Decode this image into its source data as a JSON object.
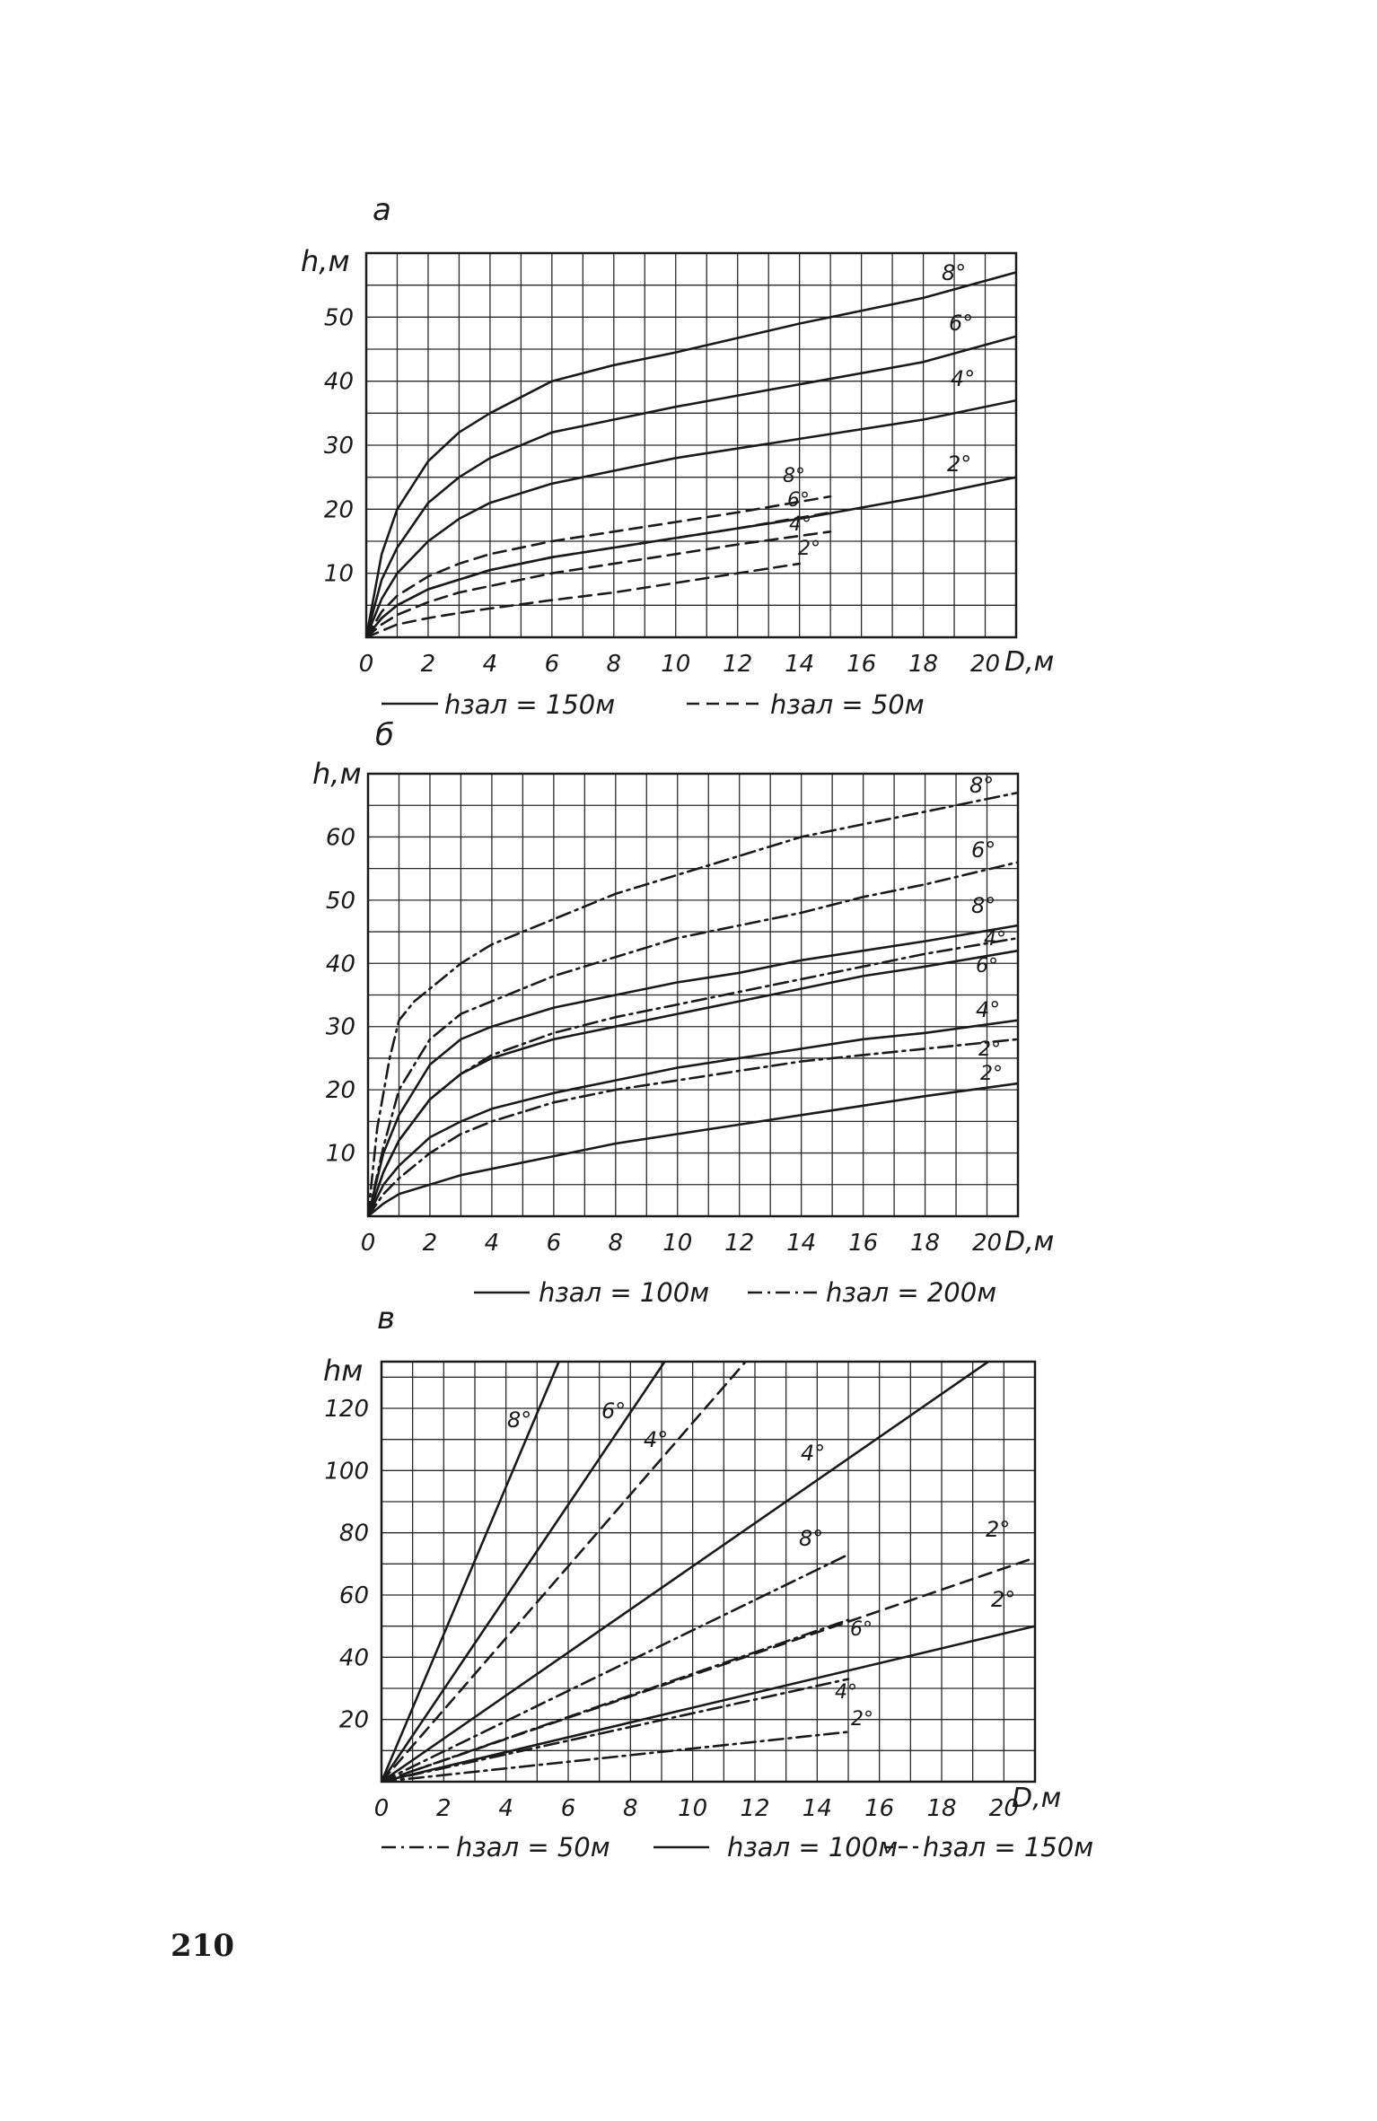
{
  "page": {
    "number": "210"
  },
  "chart_data": [
    {
      "type": "line",
      "panel_letter": "а",
      "ylabel": "h,м",
      "xlabel": "D,м",
      "xlim": [
        0,
        21
      ],
      "ylim": [
        0,
        60
      ],
      "xticks": [
        0,
        2,
        4,
        6,
        8,
        10,
        12,
        14,
        16,
        18,
        20
      ],
      "xtick_labels": [
        "0",
        "2",
        "4",
        "6",
        "8",
        "10",
        "12",
        "14",
        "16",
        "18",
        "20"
      ],
      "yticks": [
        10,
        20,
        30,
        40,
        50
      ],
      "ytick_labels": [
        "10",
        "20",
        "30",
        "40",
        "50"
      ],
      "grid": true,
      "legend": [
        {
          "style": "solid",
          "label": "hзал = 150м"
        },
        {
          "style": "dashed",
          "label": "hзал = 50м"
        }
      ],
      "series": [
        {
          "style": "solid",
          "group": "hзал = 150м",
          "label": "8°",
          "x": [
            0,
            0.5,
            1,
            2,
            3,
            4,
            6,
            8,
            10,
            14,
            18,
            21
          ],
          "y": [
            0,
            13,
            20,
            27.5,
            32,
            35,
            40,
            42.5,
            44.5,
            49,
            53,
            57
          ]
        },
        {
          "style": "solid",
          "group": "hзал = 150м",
          "label": "6°",
          "x": [
            0,
            0.5,
            1,
            2,
            3,
            4,
            6,
            8,
            10,
            14,
            18,
            21
          ],
          "y": [
            0,
            9,
            14,
            21,
            25,
            28,
            32,
            34,
            36,
            39.5,
            43,
            47
          ]
        },
        {
          "style": "solid",
          "group": "hзал = 150м",
          "label": "4°",
          "x": [
            0,
            0.5,
            1,
            2,
            3,
            4,
            6,
            8,
            10,
            14,
            18,
            21
          ],
          "y": [
            0,
            6,
            10,
            15,
            18.5,
            21,
            24,
            26,
            28,
            31,
            34,
            37
          ]
        },
        {
          "style": "solid",
          "group": "hзал = 150м",
          "label": "2°",
          "x": [
            0,
            0.5,
            1,
            2,
            3,
            4,
            6,
            8,
            10,
            14,
            18,
            21
          ],
          "y": [
            0,
            3,
            5,
            7.5,
            9,
            10.5,
            12.5,
            14,
            15.5,
            18.5,
            22,
            25
          ]
        },
        {
          "style": "dashed",
          "group": "hзал = 50м",
          "label": "8°",
          "x": [
            0,
            0.5,
            1,
            2,
            3,
            4,
            6,
            8,
            10,
            12,
            15
          ],
          "y": [
            0,
            4,
            6.5,
            9.5,
            11.5,
            13,
            15,
            16.5,
            18,
            19.5,
            22
          ]
        },
        {
          "style": "dashed",
          "group": "hзал = 50м",
          "label": "6°",
          "x": [
            0,
            0.5,
            1,
            2,
            3,
            4,
            6,
            8,
            10,
            12,
            15
          ],
          "y": [
            0,
            3,
            5,
            7.5,
            9,
            10.5,
            12.5,
            14,
            15.5,
            17,
            19.5
          ]
        },
        {
          "style": "dashed",
          "group": "hзал = 50м",
          "label": "4°",
          "x": [
            0,
            0.5,
            1,
            2,
            3,
            4,
            6,
            8,
            10,
            12,
            15
          ],
          "y": [
            0,
            2,
            3.5,
            5.5,
            7,
            8,
            10,
            11.5,
            13,
            14.5,
            16.5
          ]
        },
        {
          "style": "dashed",
          "group": "hзал = 50м",
          "label": "2°",
          "x": [
            0,
            0.5,
            1,
            2,
            3,
            4,
            6,
            8,
            10,
            12,
            14
          ],
          "y": [
            0,
            1,
            2,
            3,
            3.8,
            4.5,
            5.8,
            7,
            8.5,
            10,
            11.5
          ]
        }
      ]
    },
    {
      "type": "line",
      "panel_letter": "б",
      "ylabel": "h,м",
      "xlabel": "D,м",
      "xlim": [
        0,
        21
      ],
      "ylim": [
        0,
        70
      ],
      "xticks": [
        0,
        2,
        4,
        6,
        8,
        10,
        12,
        14,
        16,
        18,
        20
      ],
      "xtick_labels": [
        "0",
        "2",
        "4",
        "6",
        "8",
        "10",
        "12",
        "14",
        "16",
        "18",
        "20"
      ],
      "yticks": [
        10,
        20,
        30,
        40,
        50,
        60
      ],
      "ytick_labels": [
        "10",
        "20",
        "30",
        "40",
        "50",
        "60"
      ],
      "grid": true,
      "legend": [
        {
          "style": "solid",
          "label": "hзал = 100м"
        },
        {
          "style": "dashdot",
          "label": "hзал = 200м"
        }
      ],
      "series": [
        {
          "style": "dashdot",
          "group": "hзал = 200м",
          "label": "8°",
          "x": [
            0,
            0.3,
            0.7,
            1,
            1.5,
            2,
            3,
            4,
            6,
            8,
            10,
            12,
            14,
            16,
            18,
            21
          ],
          "y": [
            0,
            14,
            25,
            31,
            34,
            36,
            40,
            43,
            47,
            51,
            54,
            57,
            60,
            62,
            64,
            67
          ]
        },
        {
          "style": "dashdot",
          "group": "hзал = 200м",
          "label": "6°",
          "x": [
            0,
            0.5,
            1,
            2,
            3,
            4,
            6,
            8,
            10,
            12,
            14,
            16,
            18,
            21
          ],
          "y": [
            0,
            11,
            20,
            28,
            32,
            34,
            38,
            41,
            44,
            46,
            48,
            50.5,
            52.5,
            56
          ]
        },
        {
          "style": "dashdot",
          "group": "hзал = 200м",
          "label": "4°",
          "x": [
            0,
            0.5,
            1,
            2,
            3,
            4,
            6,
            8,
            10,
            12,
            14,
            16,
            18,
            21
          ],
          "y": [
            0,
            7,
            12,
            18.5,
            22.5,
            25.5,
            29,
            31.5,
            33.5,
            35.5,
            37.5,
            39.5,
            41.5,
            44
          ]
        },
        {
          "style": "dashdot",
          "group": "hзал = 200м",
          "label": "2°",
          "x": [
            0,
            0.5,
            1,
            2,
            3,
            4,
            6,
            8,
            10,
            12,
            14,
            16,
            18,
            21
          ],
          "y": [
            0,
            3.5,
            6,
            10,
            13,
            15,
            18,
            20,
            21.5,
            23,
            24.5,
            25.5,
            26.5,
            28
          ]
        },
        {
          "style": "solid",
          "group": "hзал = 100м",
          "label": "8°",
          "x": [
            0,
            0.5,
            1,
            2,
            3,
            4,
            6,
            8,
            10,
            12,
            14,
            16,
            18,
            21
          ],
          "y": [
            0,
            10,
            16,
            24,
            28,
            30,
            33,
            35,
            37,
            38.5,
            40.5,
            42,
            43.5,
            46
          ]
        },
        {
          "style": "solid",
          "group": "hзал = 100м",
          "label": "6°",
          "x": [
            0,
            0.5,
            1,
            2,
            3,
            4,
            6,
            8,
            10,
            12,
            14,
            16,
            18,
            21
          ],
          "y": [
            0,
            7,
            12,
            18.5,
            22.5,
            25,
            28,
            30,
            32,
            34,
            36,
            38,
            39.5,
            42
          ]
        },
        {
          "style": "solid",
          "group": "hзал = 100м",
          "label": "4°",
          "x": [
            0,
            0.5,
            1,
            2,
            3,
            4,
            6,
            8,
            10,
            12,
            14,
            16,
            18,
            21
          ],
          "y": [
            0,
            5,
            8,
            12.5,
            15,
            17,
            19.5,
            21.5,
            23.5,
            25,
            26.5,
            28,
            29,
            31
          ]
        },
        {
          "style": "solid",
          "group": "hзал = 100м",
          "label": "2°",
          "x": [
            0,
            0.5,
            1,
            2,
            3,
            4,
            6,
            8,
            10,
            12,
            14,
            16,
            18,
            21
          ],
          "y": [
            0,
            2,
            3.5,
            5,
            6.5,
            7.5,
            9.5,
            11.5,
            13,
            14.5,
            16,
            17.5,
            19,
            21
          ]
        }
      ]
    },
    {
      "type": "line",
      "panel_letter": "в",
      "ylabel": "hм",
      "xlabel": "D,м",
      "xlim": [
        0,
        21
      ],
      "ylim": [
        0,
        135
      ],
      "xticks": [
        0,
        2,
        4,
        6,
        8,
        10,
        12,
        14,
        16,
        18,
        20
      ],
      "xtick_labels": [
        "0",
        "2",
        "4",
        "6",
        "8",
        "10",
        "12",
        "14",
        "16",
        "18",
        "20"
      ],
      "yticks": [
        20,
        40,
        60,
        80,
        100,
        120
      ],
      "ytick_labels": [
        "20",
        "40",
        "60",
        "80",
        "100",
        "120"
      ],
      "grid": true,
      "legend": [
        {
          "style": "dashdot",
          "label": "hзал = 50м"
        },
        {
          "style": "solid",
          "label": "hзал = 100м"
        },
        {
          "style": "dashed",
          "label": "hзал = 150м"
        }
      ],
      "series": [
        {
          "style": "solid",
          "group": "hзал = 100м",
          "label": "8°",
          "x": [
            0,
            5.7
          ],
          "y": [
            0,
            135
          ]
        },
        {
          "style": "solid",
          "group": "hзал = 100м",
          "label": "6°",
          "x": [
            0,
            9.1
          ],
          "y": [
            0,
            135
          ]
        },
        {
          "style": "dashed",
          "group": "hзал = 150м",
          "label": "4°",
          "x": [
            0,
            11.7
          ],
          "y": [
            0,
            135
          ]
        },
        {
          "style": "solid",
          "group": "hзал = 100м",
          "label": "4°",
          "x": [
            0,
            19.5
          ],
          "y": [
            0,
            135
          ]
        },
        {
          "style": "dashdot",
          "group": "hзал = 50м",
          "label": "8°",
          "x": [
            0,
            15
          ],
          "y": [
            0,
            73
          ]
        },
        {
          "style": "dashed",
          "group": "hзал = 150м",
          "label": "2°",
          "x": [
            0,
            21
          ],
          "y": [
            0,
            72
          ]
        },
        {
          "style": "dashdot",
          "group": "hзал = 50м",
          "label": "6°",
          "x": [
            0,
            15
          ],
          "y": [
            0,
            52
          ]
        },
        {
          "style": "solid",
          "group": "hзал = 100м",
          "label": "2°",
          "x": [
            0,
            21
          ],
          "y": [
            0,
            50
          ]
        },
        {
          "style": "dashdot",
          "group": "hзал = 50м",
          "label": "4°",
          "x": [
            0,
            15
          ],
          "y": [
            0,
            33
          ]
        },
        {
          "style": "dashdot",
          "group": "hзал = 50м",
          "label": "2°",
          "x": [
            0,
            15
          ],
          "y": [
            0,
            16
          ]
        }
      ]
    }
  ]
}
